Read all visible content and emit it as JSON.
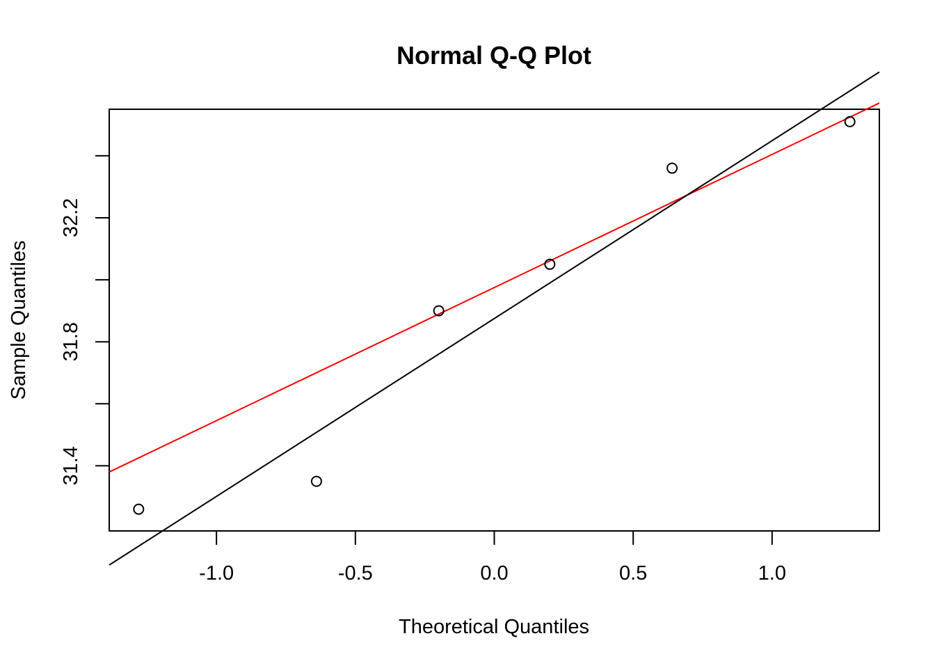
{
  "chart_data": {
    "type": "scatter",
    "title": "Normal Q-Q Plot",
    "xlabel": "Theoretical Quantiles",
    "ylabel": "Sample Quantiles",
    "xlim": [
      -1.386,
      1.386
    ],
    "ylim": [
      31.19,
      32.55
    ],
    "x_ticks": [
      -1.0,
      -0.5,
      0.0,
      0.5,
      1.0
    ],
    "x_tick_labels": [
      "-1.0",
      "-0.5",
      "0.0",
      "0.5",
      "1.0"
    ],
    "y_ticks": [
      31.4,
      31.6,
      31.8,
      32.0,
      32.2,
      32.4
    ],
    "y_tick_labels": [
      "31.4",
      "",
      "31.8",
      "",
      "32.2",
      ""
    ],
    "points": [
      {
        "x": -1.28,
        "y": 31.26
      },
      {
        "x": -0.64,
        "y": 31.35
      },
      {
        "x": -0.2,
        "y": 31.9
      },
      {
        "x": 0.2,
        "y": 32.05
      },
      {
        "x": 0.64,
        "y": 32.36
      },
      {
        "x": 1.28,
        "y": 32.51
      }
    ],
    "lines": [
      {
        "color": "#ff0000",
        "x1": -1.386,
        "y1": 31.38,
        "x2": 1.386,
        "y2": 32.57
      },
      {
        "color": "#000000",
        "x1": -1.386,
        "y1": 31.08,
        "x2": 1.386,
        "y2": 32.67
      }
    ],
    "grid": false,
    "legend": "none"
  }
}
